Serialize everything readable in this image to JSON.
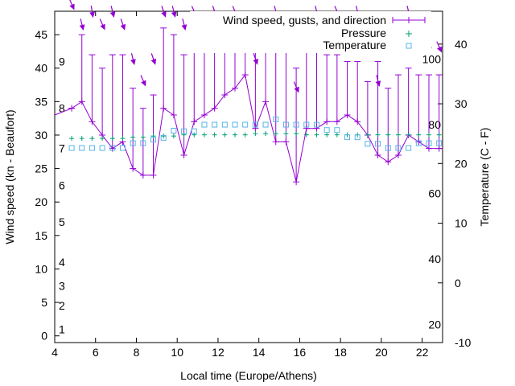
{
  "chart_data": {
    "type": "line",
    "xlabel": "Local time (Europe/Athens)",
    "ylabel": "Wind speed (kn - Beaufort)",
    "y2label": "Temperature (C - F)",
    "xlim": [
      4,
      23
    ],
    "ylim": [
      -1,
      48.5
    ],
    "y2lim": [
      -10,
      45.5
    ],
    "x_ticks": [
      "4",
      "6",
      "8",
      "10",
      "12",
      "14",
      "16",
      "18",
      "20",
      "22"
    ],
    "y_ticks": [
      "0",
      "5",
      "10",
      "15",
      "20",
      "25",
      "30",
      "35",
      "40",
      "45"
    ],
    "y2_ticks": [
      "-10",
      "0",
      "10",
      "20",
      "30",
      "40"
    ],
    "beaufort_labels": [
      {
        "label": "1",
        "y": 1
      },
      {
        "label": "2",
        "y": 4.5
      },
      {
        "label": "3",
        "y": 7.5
      },
      {
        "label": "4",
        "y": 11
      },
      {
        "label": "5",
        "y": 17
      },
      {
        "label": "6",
        "y": 22.5
      },
      {
        "label": "7",
        "y": 28
      },
      {
        "label": "8",
        "y": 34
      },
      {
        "label": "9",
        "y": 41
      }
    ],
    "fahrenheit_labels": [
      {
        "label": "20",
        "y2": -7
      },
      {
        "label": "40",
        "y2": 4
      },
      {
        "label": "60",
        "y2": 15
      },
      {
        "label": "80",
        "y2": 26.5
      },
      {
        "label": "100",
        "y2": 37.5
      }
    ],
    "legend_position": "top-right",
    "colors": {
      "wind": "#9400d3",
      "pressure": "#009e73",
      "temperature": "#56b4e9"
    },
    "series": [
      {
        "name": "Wind speed, gusts, and direction",
        "style": "line-points-errorbars",
        "x": [
          4.83,
          5.33,
          5.83,
          6.33,
          6.83,
          7.33,
          7.83,
          8.33,
          8.83,
          9.33,
          9.83,
          10.33,
          10.83,
          11.33,
          11.83,
          12.33,
          12.83,
          13.33,
          13.83,
          14.33,
          14.83,
          15.33,
          15.83,
          16.33,
          16.83,
          17.33,
          17.83,
          18.33,
          18.83,
          19.33,
          19.83,
          20.33,
          20.83,
          21.33,
          21.83,
          22.33,
          22.83
        ],
        "speed": [
          34,
          35,
          32,
          30,
          28,
          29,
          25,
          24,
          24,
          34,
          33,
          27,
          32,
          33,
          34,
          36,
          37,
          39,
          31,
          35,
          29,
          29,
          23,
          31,
          31,
          32,
          32,
          33,
          32,
          30,
          27,
          26,
          27,
          30,
          29,
          28,
          28
        ],
        "gust": [
          34,
          45,
          42,
          40,
          42,
          42,
          37,
          34,
          36,
          46,
          45,
          42,
          46,
          48,
          48,
          48,
          48,
          48,
          48,
          46,
          45,
          44,
          40,
          43,
          43,
          42,
          42,
          41,
          41,
          38,
          41,
          37,
          39,
          40,
          39,
          39,
          39
        ],
        "direction_deg": [
          300,
          310,
          315,
          300,
          310,
          305,
          310,
          300,
          305,
          305,
          310,
          310,
          300,
          315,
          305,
          310,
          300,
          310,
          305,
          300,
          310,
          315,
          300,
          305,
          310,
          310,
          300,
          315,
          310,
          305,
          310,
          300,
          305,
          310,
          305,
          310,
          300
        ]
      },
      {
        "name": "Pressure",
        "style": "points-plus",
        "x": [
          4.83,
          5.33,
          5.83,
          6.33,
          6.83,
          7.33,
          7.83,
          8.33,
          8.83,
          9.33,
          9.83,
          10.33,
          10.83,
          11.33,
          11.83,
          12.33,
          12.83,
          13.33,
          13.83,
          14.33,
          14.83,
          15.33,
          15.83,
          16.33,
          16.83,
          17.33,
          17.83,
          18.33,
          18.83,
          19.33,
          19.83,
          20.33,
          20.83,
          21.33,
          21.83,
          22.33,
          22.83
        ],
        "y2": [
          24.2,
          24.2,
          24.2,
          24.2,
          24.2,
          24.2,
          24.4,
          24.4,
          24.6,
          24.6,
          24.6,
          24.8,
          24.8,
          24.8,
          24.8,
          24.8,
          24.8,
          24.8,
          25,
          25,
          25,
          25,
          25,
          24.8,
          24.8,
          24.8,
          24.8,
          24.8,
          24.8,
          24.8,
          24.8,
          24.8,
          24.8,
          24.8,
          24.8,
          24.8,
          24.8
        ]
      },
      {
        "name": "Temperature",
        "style": "points-square",
        "x": [
          4.83,
          5.33,
          5.83,
          6.33,
          6.83,
          7.33,
          7.83,
          8.33,
          8.83,
          9.33,
          9.83,
          10.33,
          10.83,
          11.33,
          11.83,
          12.33,
          12.83,
          13.33,
          13.83,
          14.33,
          14.83,
          15.33,
          15.83,
          16.33,
          16.83,
          17.33,
          17.83,
          18.33,
          18.83,
          19.33,
          19.83,
          20.33,
          20.83,
          21.33,
          21.83,
          22.33,
          22.83
        ],
        "y2": [
          22.6,
          22.6,
          22.6,
          22.6,
          22.6,
          22.6,
          23.4,
          23.4,
          24,
          24.3,
          25.5,
          25.4,
          25.4,
          26.5,
          26.5,
          26.5,
          26.5,
          26.5,
          26.5,
          26.5,
          27.4,
          26.5,
          26.5,
          26.5,
          26.5,
          25.6,
          25.6,
          24.4,
          24.4,
          23.3,
          23.3,
          22.6,
          22.6,
          22.6,
          23.4,
          23.4,
          23.4
        ]
      }
    ]
  }
}
